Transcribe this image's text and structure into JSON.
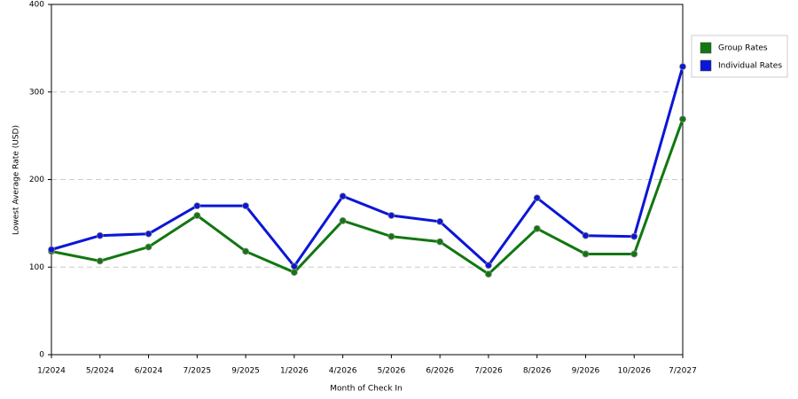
{
  "chart_data": {
    "type": "line",
    "x_label": "Month of Check In",
    "y_label": "Lowest Average Rate (USD)",
    "categories": [
      "1/2024",
      "5/2024",
      "6/2024",
      "7/2025",
      "9/2025",
      "1/2026",
      "4/2026",
      "5/2026",
      "6/2026",
      "7/2026",
      "8/2026",
      "9/2026",
      "10/2026",
      "7/2027"
    ],
    "series": [
      {
        "name": "Group Rates",
        "color": "#117711",
        "values": [
          118,
          107,
          123,
          159,
          118,
          94,
          153,
          135,
          129,
          92,
          144,
          115,
          115,
          269
        ]
      },
      {
        "name": "Individual Rates",
        "color": "#0b16d6",
        "values": [
          120,
          136,
          138,
          170,
          170,
          101,
          181,
          159,
          152,
          102,
          179,
          136,
          135,
          329
        ]
      }
    ],
    "ylim": [
      0,
      400
    ],
    "yticks": [
      0,
      100,
      200,
      300,
      400
    ],
    "grid": true,
    "legend": "right"
  }
}
